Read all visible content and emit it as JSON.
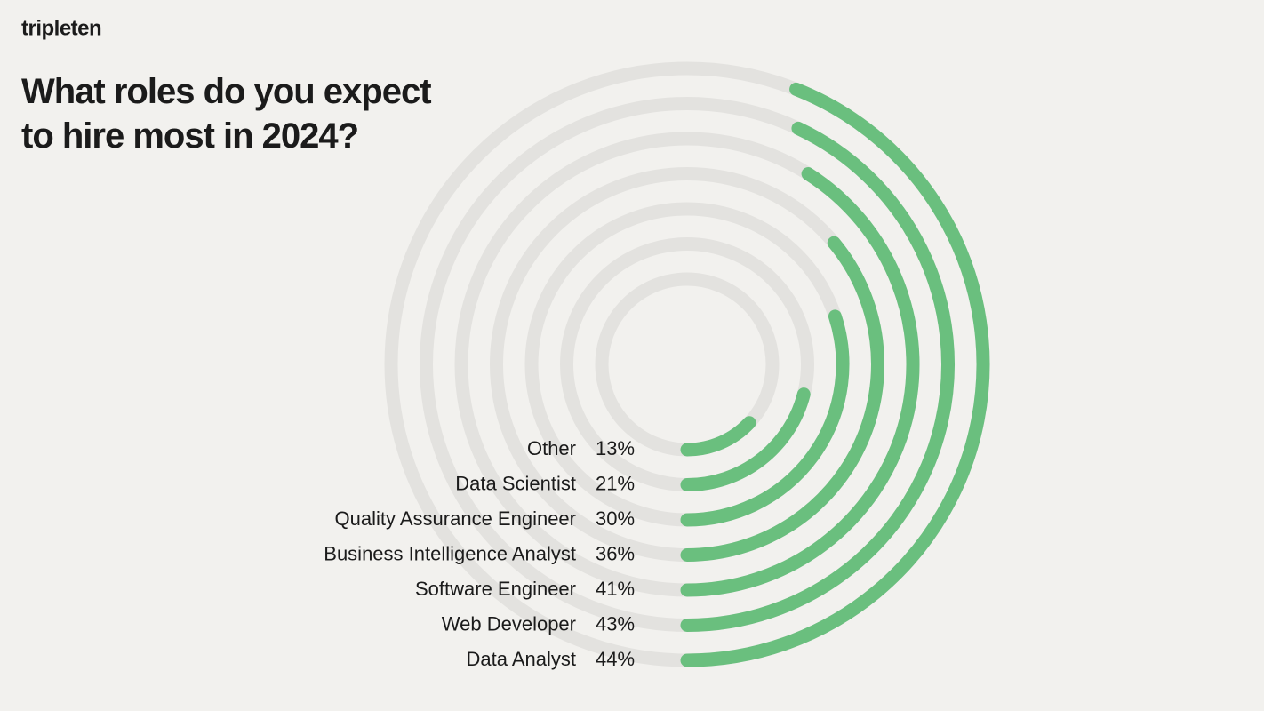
{
  "logo": "tripleten",
  "chart_data": {
    "type": "radial-bar",
    "title": "What roles do you expect to hire most in 2024?",
    "categories": [
      "Other",
      "Data Scientist",
      "Quality Assurance Engineer",
      "Business Intelligence Analyst",
      "Software Engineer",
      "Web Developer",
      "Data Analyst"
    ],
    "values": [
      13,
      21,
      30,
      36,
      41,
      43,
      44
    ],
    "value_labels": [
      "13%",
      "21%",
      "30%",
      "36%",
      "41%",
      "43%",
      "44%"
    ],
    "color": "#6abf7e",
    "track_color": "#e3e2df"
  }
}
